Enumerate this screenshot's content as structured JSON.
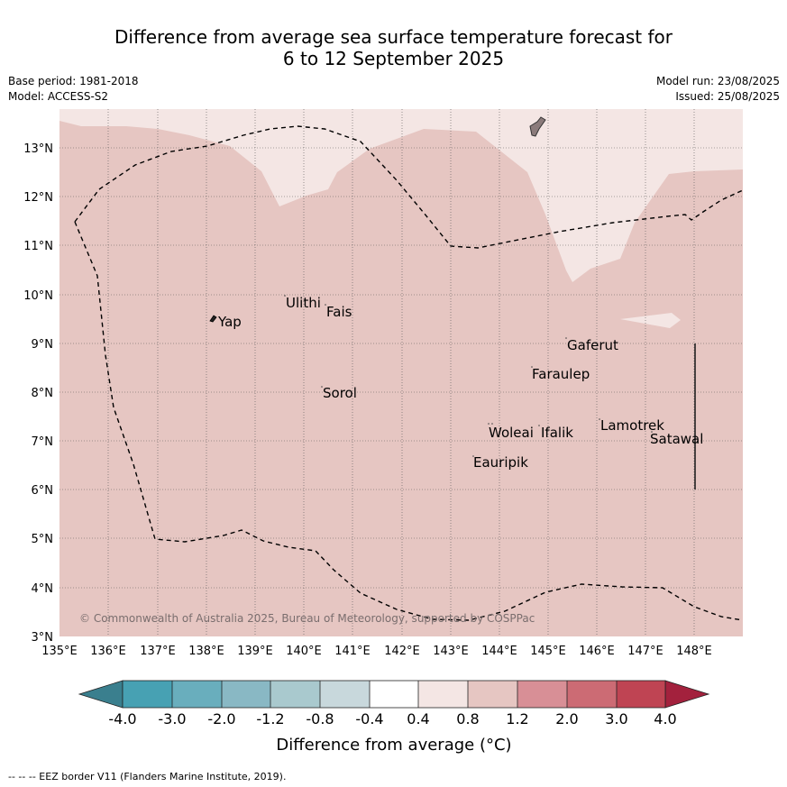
{
  "header": {
    "title_line1": "Difference from average sea surface temperature forecast for",
    "title_line2": "6 to 12 September 2025",
    "base_period": "Base period: 1981-2018",
    "model": "Model: ACCESS-S2",
    "model_run": "Model run: 23/08/2025",
    "issued": "Issued: 25/08/2025"
  },
  "map": {
    "lon_range": [
      135,
      149
    ],
    "lat_range": [
      3,
      13.8
    ],
    "lon_ticks": [
      "135°E",
      "136°E",
      "137°E",
      "138°E",
      "139°E",
      "140°E",
      "141°E",
      "142°E",
      "143°E",
      "144°E",
      "145°E",
      "146°E",
      "147°E",
      "148°E"
    ],
    "lat_ticks": [
      "3°N",
      "4°N",
      "5°N",
      "6°N",
      "7°N",
      "8°N",
      "9°N",
      "10°N",
      "11°N",
      "12°N",
      "13°N"
    ],
    "background_anomaly_color": "#e6c6c2",
    "light_anomaly_color": "#f4e6e4",
    "places": [
      {
        "name": "Yap",
        "lon": 138.25,
        "lat": 9.45
      },
      {
        "name": "Ulithi",
        "lon": 139.7,
        "lat": 9.8
      },
      {
        "name": "Fais",
        "lon": 140.5,
        "lat": 9.6
      },
      {
        "name": "Gaferut",
        "lon": 145.4,
        "lat": 8.85
      },
      {
        "name": "Faraulep",
        "lon": 144.65,
        "lat": 8.25
      },
      {
        "name": "Sorol",
        "lon": 140.35,
        "lat": 7.9
      },
      {
        "name": "Woleai",
        "lon": 143.7,
        "lat": 7.05
      },
      {
        "name": "Ifalik",
        "lon": 144.8,
        "lat": 7.05
      },
      {
        "name": "Lamotrek",
        "lon": 146.05,
        "lat": 7.2
      },
      {
        "name": "Satawal",
        "lon": 147.1,
        "lat": 6.9
      },
      {
        "name": "Eauripik",
        "lon": 143.45,
        "lat": 6.45
      }
    ],
    "copyright": "© Commonwealth of Australia 2025, Bureau of Meteorology, supported by COSPPac"
  },
  "colorbar": {
    "label": "Difference from average (°C)",
    "ticks": [
      "-4.0",
      "-3.0",
      "-2.0",
      "-1.2",
      "-0.8",
      "-0.4",
      "0.4",
      "0.8",
      "1.2",
      "2.0",
      "3.0",
      "4.0"
    ],
    "under_color": "#3a7f8e",
    "over_color": "#a3213d",
    "colors": [
      "#47a1b3",
      "#69aebd",
      "#89b8c4",
      "#a9c9ce",
      "#c8d8dc",
      "#ffffff",
      "#f4e6e4",
      "#e6c6c2",
      "#d88f96",
      "#cc6b74",
      "#bf4453"
    ]
  },
  "footer": {
    "legend_text": "--  --  -- EEZ border V11 (Flanders Marine Institute, 2019)."
  }
}
